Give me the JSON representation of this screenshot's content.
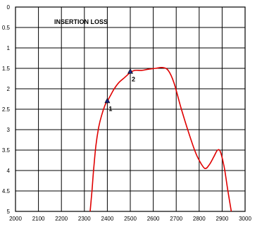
{
  "chart_data": {
    "type": "line",
    "title": "INSERTION LOSS",
    "xlabel": "",
    "ylabel": "",
    "xlim": [
      2000,
      3000
    ],
    "ylim": [
      0,
      5
    ],
    "y_inverted": true,
    "grid": true,
    "x_ticks": [
      2000,
      2100,
      2200,
      2300,
      2400,
      2500,
      2600,
      2700,
      2800,
      2900,
      3000
    ],
    "y_ticks": [
      0,
      0.5,
      1,
      1.5,
      2,
      2.5,
      3,
      3.5,
      4,
      4.5,
      5
    ],
    "y_tick_labels": [
      "0",
      "0.5",
      "1",
      "1.5",
      "2",
      "2.5",
      "3",
      "3.5",
      "4",
      "4.5",
      "5"
    ],
    "colors": {
      "line": "#e00000",
      "marker": "#1a237e",
      "grid": "#000000"
    },
    "series": [
      {
        "values": [
          [
            2325,
            5.0
          ],
          [
            2333,
            4.5
          ],
          [
            2340,
            4.0
          ],
          [
            2350,
            3.4
          ],
          [
            2362,
            2.95
          ],
          [
            2375,
            2.65
          ],
          [
            2390,
            2.4
          ],
          [
            2400,
            2.3
          ],
          [
            2415,
            2.15
          ],
          [
            2430,
            2.0
          ],
          [
            2450,
            1.85
          ],
          [
            2470,
            1.75
          ],
          [
            2490,
            1.65
          ],
          [
            2500,
            1.6
          ],
          [
            2520,
            1.55
          ],
          [
            2550,
            1.55
          ],
          [
            2580,
            1.52
          ],
          [
            2610,
            1.5
          ],
          [
            2640,
            1.48
          ],
          [
            2665,
            1.55
          ],
          [
            2690,
            1.85
          ],
          [
            2720,
            2.45
          ],
          [
            2750,
            3.0
          ],
          [
            2780,
            3.5
          ],
          [
            2800,
            3.75
          ],
          [
            2825,
            3.95
          ],
          [
            2845,
            3.85
          ],
          [
            2865,
            3.65
          ],
          [
            2880,
            3.5
          ],
          [
            2893,
            3.55
          ],
          [
            2910,
            3.95
          ],
          [
            2925,
            4.5
          ],
          [
            2940,
            5.0
          ]
        ]
      }
    ],
    "markers": [
      {
        "label": "1",
        "x": 2400,
        "y": 2.3
      },
      {
        "label": "2",
        "x": 2500,
        "y": 1.58
      }
    ]
  }
}
